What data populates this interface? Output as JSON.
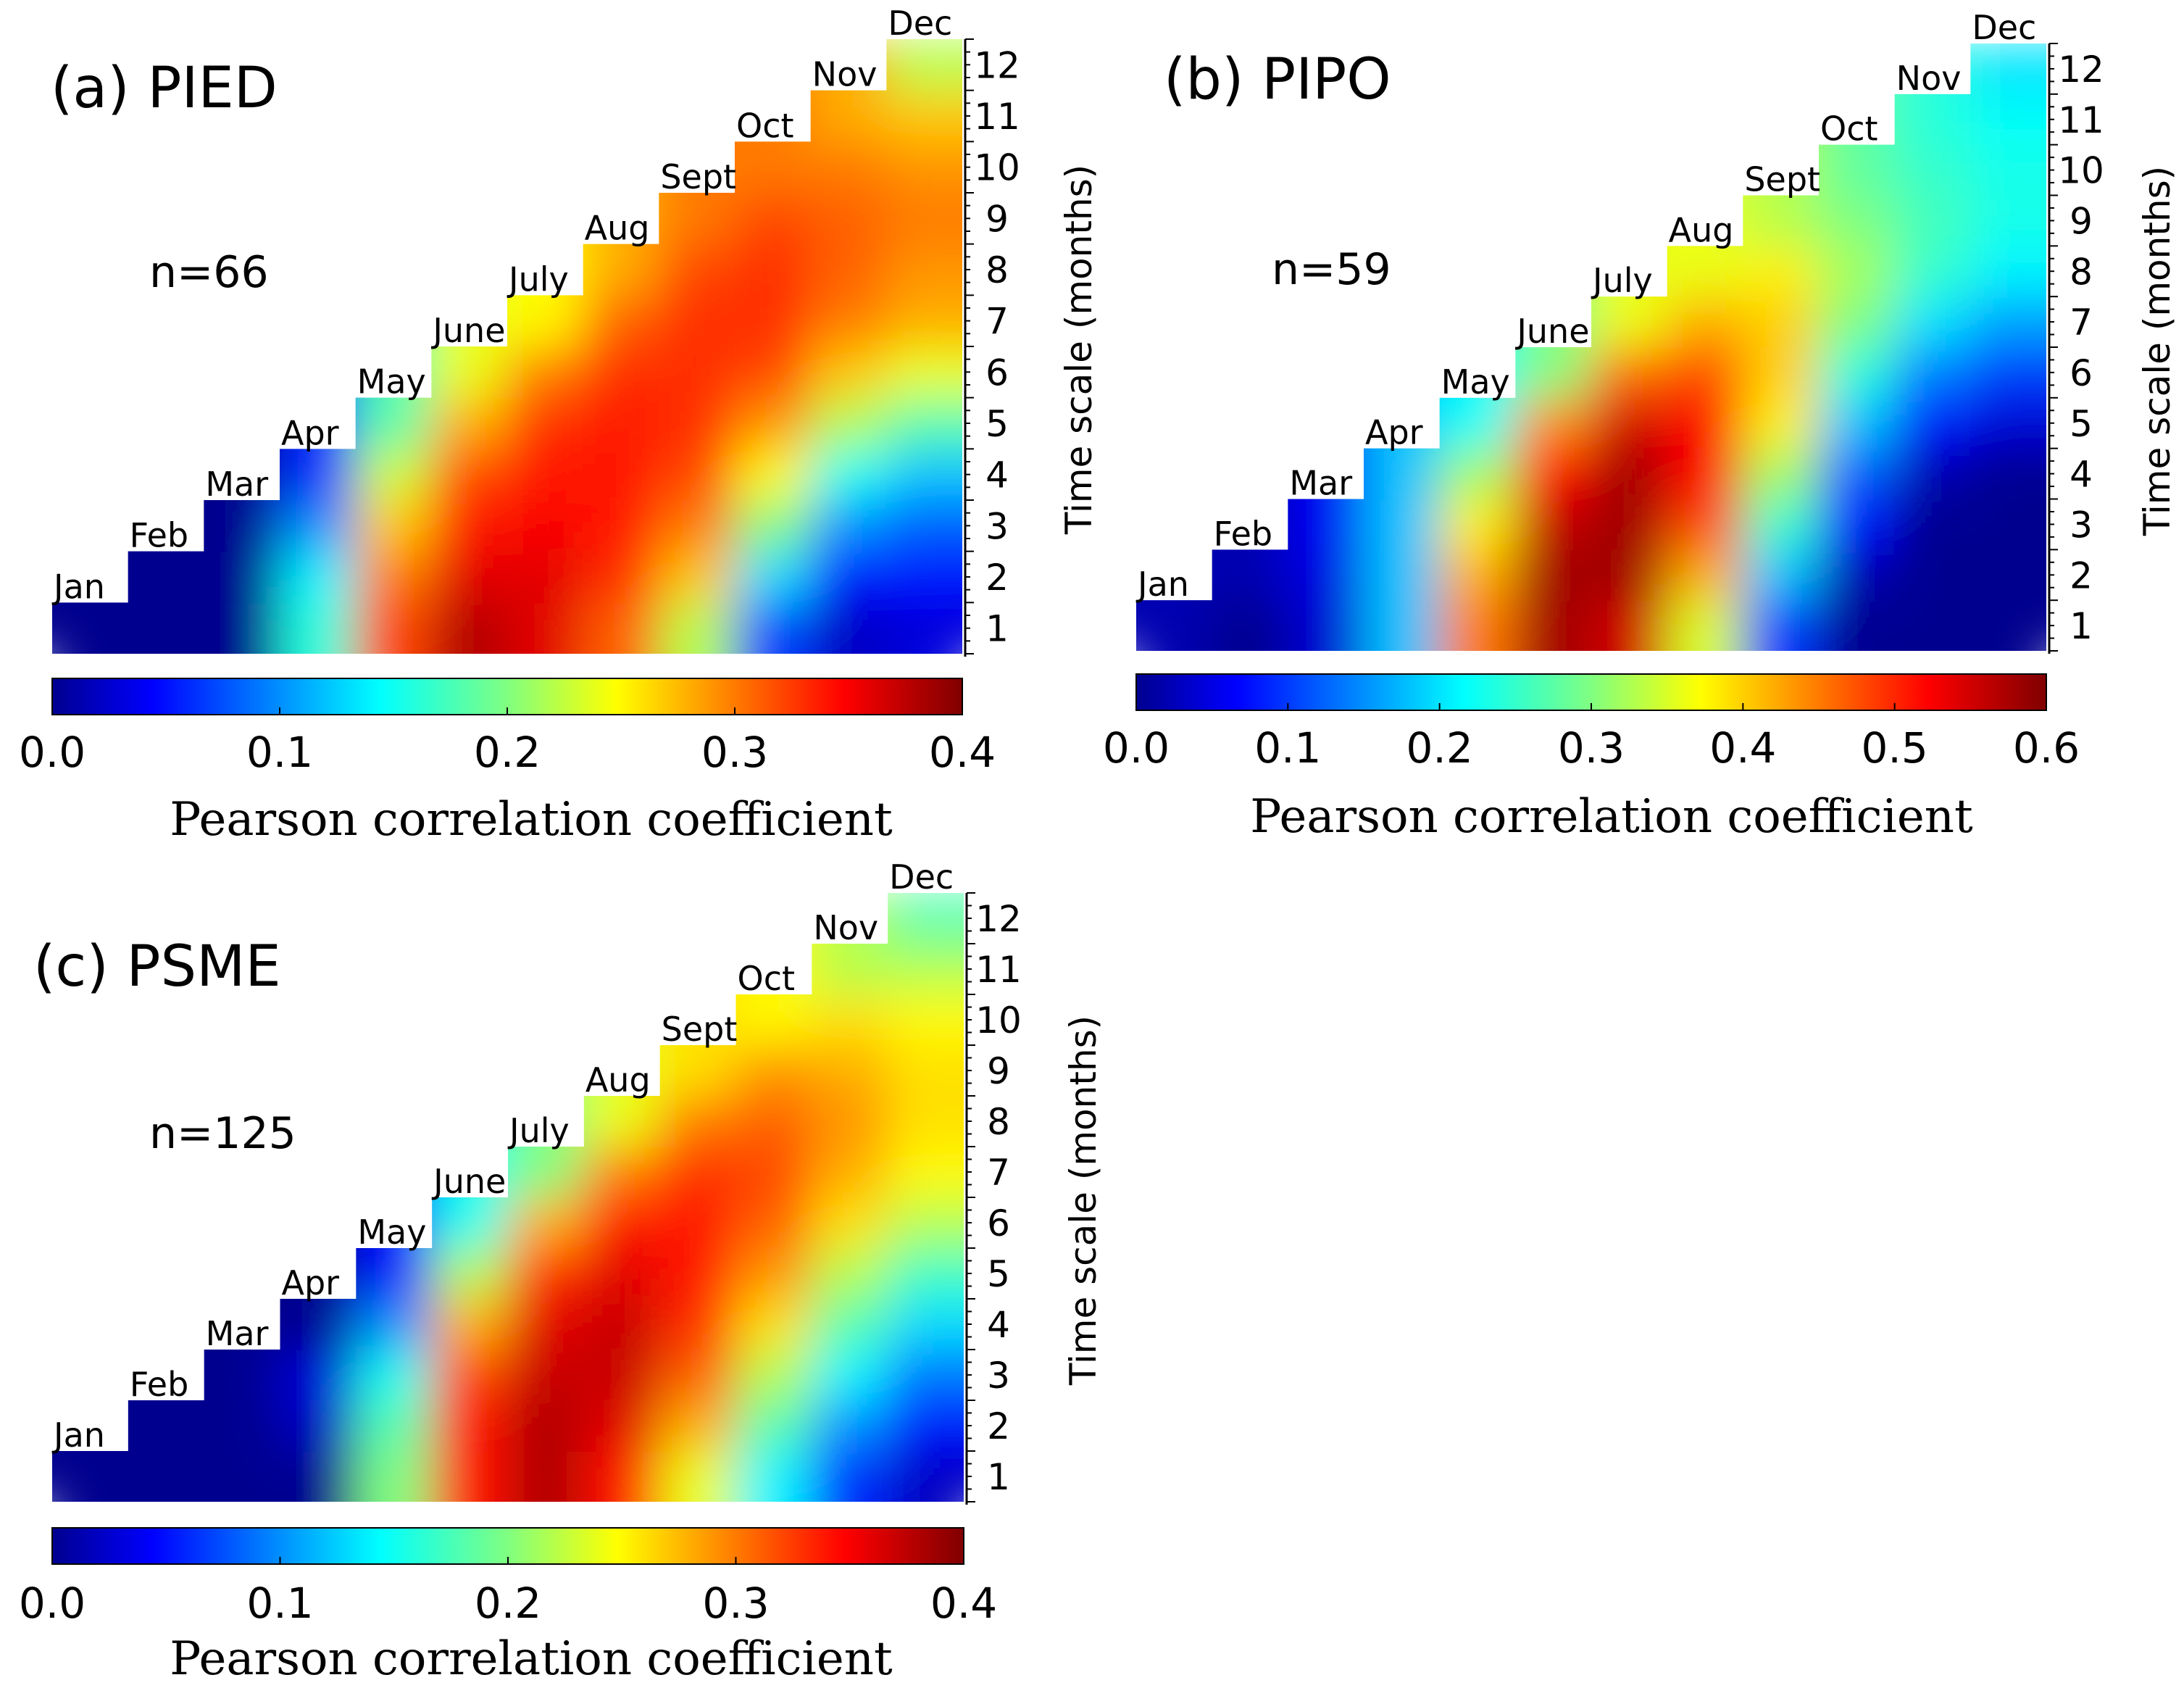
{
  "chart_data": [
    {
      "type": "heatmap",
      "title": "(a) PIED",
      "annotation": "n=66",
      "x_categories": [
        "Jan",
        "Feb",
        "Mar",
        "Apr",
        "May",
        "June",
        "July",
        "Aug",
        "Sept",
        "Oct",
        "Nov",
        "Dec"
      ],
      "ylabel": "Time scale (months)",
      "y_ticks": [
        1,
        2,
        3,
        4,
        5,
        6,
        7,
        8,
        9,
        10,
        11,
        12
      ],
      "colorbar": {
        "label": "Pearson correlation coefficient",
        "range": [
          0.0,
          0.4
        ],
        "ticks": [
          "0.0",
          "0.1",
          "0.2",
          "0.3",
          "0.4"
        ]
      },
      "values": [
        [
          0.0,
          0.0,
          0.0,
          0.16,
          0.32,
          0.38,
          0.36,
          0.31,
          0.22,
          0.07,
          0.02,
          0.03
        ],
        [
          null,
          0.0,
          0.0,
          0.14,
          0.3,
          0.36,
          0.36,
          0.33,
          0.27,
          0.13,
          0.05,
          0.05
        ],
        [
          null,
          null,
          0.0,
          0.1,
          0.27,
          0.34,
          0.35,
          0.34,
          0.3,
          0.2,
          0.1,
          0.08
        ],
        [
          null,
          null,
          null,
          0.06,
          0.23,
          0.32,
          0.34,
          0.34,
          0.32,
          0.25,
          0.15,
          0.12
        ],
        [
          null,
          null,
          null,
          null,
          0.18,
          0.28,
          0.33,
          0.34,
          0.33,
          0.29,
          0.22,
          0.18
        ],
        [
          null,
          null,
          null,
          null,
          null,
          0.24,
          0.3,
          0.33,
          0.33,
          0.32,
          0.27,
          0.24
        ],
        [
          null,
          null,
          null,
          null,
          null,
          null,
          0.25,
          0.31,
          0.33,
          0.33,
          0.3,
          0.28
        ],
        [
          null,
          null,
          null,
          null,
          null,
          null,
          null,
          0.28,
          0.32,
          0.33,
          0.31,
          0.29
        ],
        [
          null,
          null,
          null,
          null,
          null,
          null,
          null,
          null,
          0.3,
          0.32,
          0.31,
          0.3
        ],
        [
          null,
          null,
          null,
          null,
          null,
          null,
          null,
          null,
          null,
          0.3,
          0.3,
          0.29
        ],
        [
          null,
          null,
          null,
          null,
          null,
          null,
          null,
          null,
          null,
          null,
          0.28,
          0.27
        ],
        [
          null,
          null,
          null,
          null,
          null,
          null,
          null,
          null,
          null,
          null,
          null,
          0.22
        ]
      ]
    },
    {
      "type": "heatmap",
      "title": "(b) PIPO",
      "annotation": "n=59",
      "x_categories": [
        "Jan",
        "Feb",
        "Mar",
        "Apr",
        "May",
        "June",
        "July",
        "Aug",
        "Sept",
        "Oct",
        "Nov",
        "Dec"
      ],
      "ylabel": "Time scale (months)",
      "y_ticks": [
        1,
        2,
        3,
        4,
        5,
        6,
        7,
        8,
        9,
        10,
        11,
        12
      ],
      "colorbar": {
        "label": "Pearson correlation coefficient",
        "range": [
          0.0,
          0.6
        ],
        "ticks": [
          "0.0",
          "0.1",
          "0.2",
          "0.3",
          "0.4",
          "0.5",
          "0.6"
        ]
      },
      "values": [
        [
          0.02,
          0.0,
          0.04,
          0.18,
          0.45,
          0.58,
          0.55,
          0.35,
          0.1,
          0.0,
          0.0,
          0.0
        ],
        [
          null,
          0.02,
          0.05,
          0.18,
          0.42,
          0.58,
          0.58,
          0.42,
          0.18,
          0.02,
          0.0,
          0.0
        ],
        [
          null,
          null,
          0.06,
          0.18,
          0.38,
          0.56,
          0.58,
          0.48,
          0.25,
          0.07,
          0.0,
          0.0
        ],
        [
          null,
          null,
          null,
          0.18,
          0.32,
          0.52,
          0.58,
          0.52,
          0.32,
          0.12,
          0.02,
          0.0
        ],
        [
          null,
          null,
          null,
          null,
          0.22,
          0.44,
          0.55,
          0.52,
          0.38,
          0.18,
          0.07,
          0.04
        ],
        [
          null,
          null,
          null,
          null,
          null,
          0.3,
          0.46,
          0.48,
          0.4,
          0.24,
          0.14,
          0.1
        ],
        [
          null,
          null,
          null,
          null,
          null,
          null,
          0.36,
          0.42,
          0.4,
          0.3,
          0.2,
          0.16
        ],
        [
          null,
          null,
          null,
          null,
          null,
          null,
          null,
          0.36,
          0.38,
          0.32,
          0.25,
          0.21
        ],
        [
          null,
          null,
          null,
          null,
          null,
          null,
          null,
          null,
          0.33,
          0.3,
          0.26,
          0.23
        ],
        [
          null,
          null,
          null,
          null,
          null,
          null,
          null,
          null,
          null,
          0.28,
          0.25,
          0.23
        ],
        [
          null,
          null,
          null,
          null,
          null,
          null,
          null,
          null,
          null,
          null,
          0.24,
          0.22
        ],
        [
          null,
          null,
          null,
          null,
          null,
          null,
          null,
          null,
          null,
          null,
          null,
          0.2
        ]
      ]
    },
    {
      "type": "heatmap",
      "title": "(c) PSME",
      "annotation": "n=125",
      "x_categories": [
        "Jan",
        "Feb",
        "Mar",
        "Apr",
        "May",
        "June",
        "July",
        "Aug",
        "Sept",
        "Oct",
        "Nov",
        "Dec"
      ],
      "ylabel": "Time scale (months)",
      "y_ticks": [
        1,
        2,
        3,
        4,
        5,
        6,
        7,
        8,
        9,
        10,
        11,
        12
      ],
      "colorbar": {
        "label": "Pearson correlation coefficient",
        "range": [
          0.0,
          0.4
        ],
        "ticks": [
          "0.0",
          "0.1",
          "0.2",
          "0.3",
          "0.4"
        ]
      },
      "values": [
        [
          0.0,
          0.0,
          0.0,
          0.0,
          0.2,
          0.34,
          0.38,
          0.34,
          0.24,
          0.14,
          0.06,
          0.02
        ],
        [
          null,
          0.0,
          0.0,
          0.02,
          0.18,
          0.34,
          0.38,
          0.36,
          0.28,
          0.18,
          0.1,
          0.05
        ],
        [
          null,
          null,
          0.0,
          0.03,
          0.15,
          0.32,
          0.37,
          0.37,
          0.31,
          0.22,
          0.14,
          0.09
        ],
        [
          null,
          null,
          null,
          0.0,
          0.1,
          0.28,
          0.36,
          0.37,
          0.33,
          0.26,
          0.18,
          0.13
        ],
        [
          null,
          null,
          null,
          null,
          0.05,
          0.22,
          0.33,
          0.36,
          0.34,
          0.29,
          0.22,
          0.17
        ],
        [
          null,
          null,
          null,
          null,
          null,
          0.15,
          0.28,
          0.34,
          0.34,
          0.31,
          0.26,
          0.22
        ],
        [
          null,
          null,
          null,
          null,
          null,
          null,
          0.2,
          0.3,
          0.33,
          0.32,
          0.28,
          0.25
        ],
        [
          null,
          null,
          null,
          null,
          null,
          null,
          null,
          0.24,
          0.3,
          0.31,
          0.29,
          0.26
        ],
        [
          null,
          null,
          null,
          null,
          null,
          null,
          null,
          null,
          0.26,
          0.29,
          0.28,
          0.26
        ],
        [
          null,
          null,
          null,
          null,
          null,
          null,
          null,
          null,
          null,
          0.25,
          0.26,
          0.25
        ],
        [
          null,
          null,
          null,
          null,
          null,
          null,
          null,
          null,
          null,
          null,
          0.22,
          0.22
        ],
        [
          null,
          null,
          null,
          null,
          null,
          null,
          null,
          null,
          null,
          null,
          null,
          0.18
        ]
      ]
    }
  ]
}
